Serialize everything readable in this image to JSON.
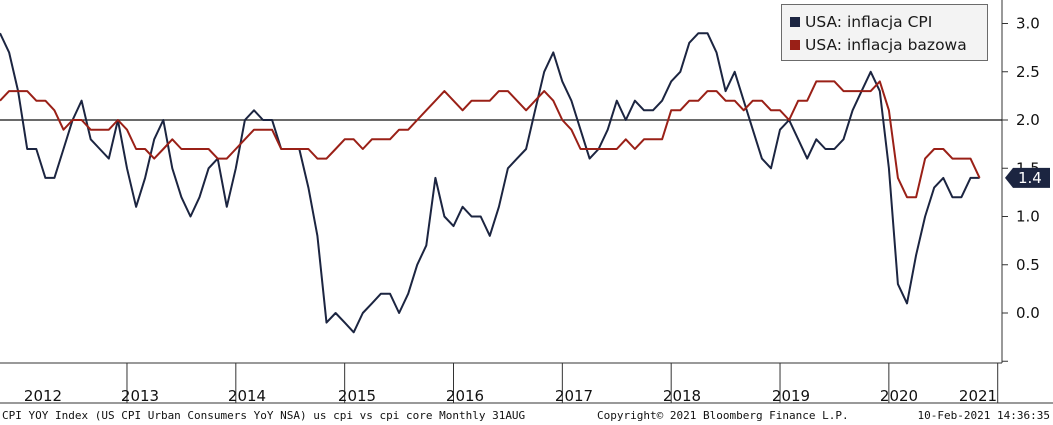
{
  "chart_data": {
    "type": "line",
    "series": [
      {
        "name": "USA: inflacja CPI",
        "color": "#1c2541",
        "values": [
          2.9,
          2.7,
          2.3,
          1.7,
          1.7,
          1.4,
          1.4,
          1.7,
          2.0,
          2.2,
          1.8,
          1.7,
          1.6,
          2.0,
          1.5,
          1.1,
          1.4,
          1.8,
          2.0,
          1.5,
          1.2,
          1.0,
          1.2,
          1.5,
          1.6,
          1.1,
          1.5,
          2.0,
          2.1,
          2.0,
          2.0,
          1.7,
          1.7,
          1.7,
          1.3,
          0.8,
          -0.1,
          0.0,
          -0.1,
          -0.2,
          0.0,
          0.1,
          0.2,
          0.2,
          0.0,
          0.2,
          0.5,
          0.7,
          1.4,
          1.0,
          0.9,
          1.1,
          1.0,
          1.0,
          0.8,
          1.1,
          1.5,
          1.6,
          1.7,
          2.1,
          2.5,
          2.7,
          2.4,
          2.2,
          1.9,
          1.6,
          1.7,
          1.9,
          2.2,
          2.0,
          2.2,
          2.1,
          2.1,
          2.2,
          2.4,
          2.5,
          2.8,
          2.9,
          2.9,
          2.7,
          2.3,
          2.5,
          2.2,
          1.9,
          1.6,
          1.5,
          1.9,
          2.0,
          1.8,
          1.6,
          1.8,
          1.7,
          1.7,
          1.8,
          2.1,
          2.3,
          2.5,
          2.3,
          1.5,
          0.3,
          0.1,
          0.6,
          1.0,
          1.3,
          1.4,
          1.2,
          1.2,
          1.4,
          1.4
        ]
      },
      {
        "name": "USA: inflacja bazowa",
        "color": "#9a2017",
        "values": [
          2.2,
          2.3,
          2.3,
          2.3,
          2.2,
          2.2,
          2.1,
          1.9,
          2.0,
          2.0,
          1.9,
          1.9,
          1.9,
          2.0,
          1.9,
          1.7,
          1.7,
          1.6,
          1.7,
          1.8,
          1.7,
          1.7,
          1.7,
          1.7,
          1.6,
          1.6,
          1.7,
          1.8,
          1.9,
          1.9,
          1.9,
          1.7,
          1.7,
          1.7,
          1.7,
          1.6,
          1.6,
          1.7,
          1.8,
          1.8,
          1.7,
          1.8,
          1.8,
          1.8,
          1.9,
          1.9,
          2.0,
          2.1,
          2.2,
          2.3,
          2.2,
          2.1,
          2.2,
          2.2,
          2.2,
          2.3,
          2.3,
          2.2,
          2.1,
          2.2,
          2.3,
          2.2,
          2.0,
          1.9,
          1.7,
          1.7,
          1.7,
          1.7,
          1.7,
          1.8,
          1.7,
          1.8,
          1.8,
          1.8,
          2.1,
          2.1,
          2.2,
          2.2,
          2.3,
          2.3,
          2.2,
          2.2,
          2.1,
          2.2,
          2.2,
          2.1,
          2.1,
          2.0,
          2.2,
          2.2,
          2.4,
          2.4,
          2.4,
          2.3,
          2.3,
          2.3,
          2.3,
          2.4,
          2.1,
          1.4,
          1.2,
          1.2,
          1.6,
          1.7,
          1.7,
          1.6,
          1.6,
          1.6,
          1.4
        ]
      }
    ],
    "x_ticks": [
      "2012",
      "2013",
      "2014",
      "2015",
      "2016",
      "2017",
      "2018",
      "2019",
      "2020",
      "2021"
    ],
    "y_ticks": [
      "3.0",
      "2.5",
      "2.0",
      "1.5",
      "1.0",
      "0.5",
      "0.0"
    ],
    "ylim": [
      -0.5,
      3.2
    ],
    "reference_line": 2.0,
    "last_value_label": "1.4",
    "last_value": 1.4
  },
  "footer": {
    "source": "CPI YOY Index (US CPI Urban Consumers YoY NSA) us cpi vs cpi core  Monthly 31AUG",
    "copyright": "Copyright© 2021 Bloomberg Finance L.P.",
    "timestamp": "10-Feb-2021 14:36:35"
  }
}
